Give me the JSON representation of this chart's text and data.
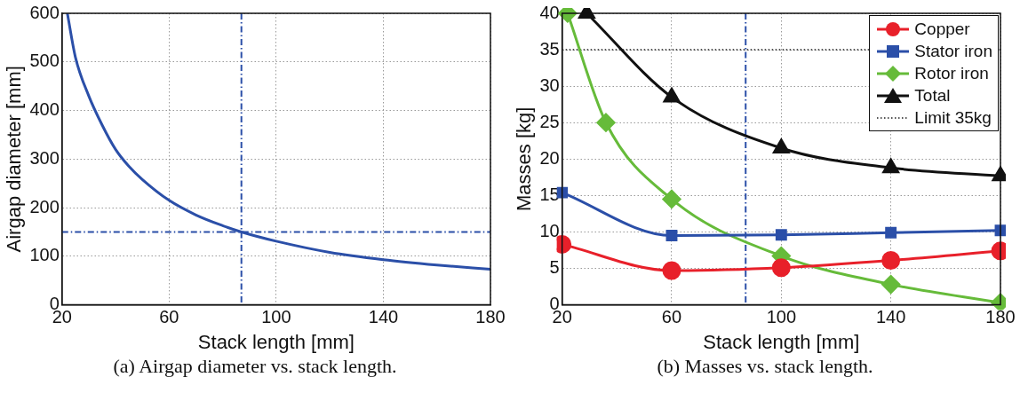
{
  "chart_data": [
    {
      "type": "line",
      "xlabel": "Stack length [mm]",
      "ylabel": "Airgap diameter [mm]",
      "annotations": [
        "(a)  Airgap diameter vs. stack length."
      ],
      "xlim": [
        20,
        180
      ],
      "xticks": [
        20,
        60,
        100,
        140,
        180
      ],
      "ylim": [
        0,
        600
      ],
      "yticks": [
        0,
        100,
        200,
        300,
        400,
        500,
        600
      ],
      "grid": true,
      "legend": false,
      "marker": "none",
      "line_style": "solid",
      "series": [
        {
          "color": "#2b4fa8",
          "x": [
            22,
            25,
            30,
            35,
            40,
            45,
            50,
            60,
            70,
            80,
            87,
            100,
            120,
            140,
            160,
            180
          ],
          "values": [
            600,
            510,
            430,
            370,
            320,
            285,
            258,
            215,
            185,
            163,
            150,
            131,
            108,
            93,
            82,
            73
          ]
        }
      ],
      "ref_lines": [
        {
          "axis": "x",
          "value": 87,
          "color": "#2b4fa8",
          "line_style": "dashed"
        },
        {
          "axis": "y",
          "value": 150,
          "color": "#2b4fa8",
          "line_style": "dashed"
        }
      ]
    },
    {
      "type": "line",
      "xlabel": "Stack length [mm]",
      "ylabel": "Masses [kg]",
      "annotations": [
        "(b)  Masses vs. stack length."
      ],
      "xlim": [
        20,
        180
      ],
      "xticks": [
        20,
        60,
        100,
        140,
        180
      ],
      "ylim": [
        0,
        40
      ],
      "yticks": [
        0,
        5,
        10,
        15,
        20,
        25,
        30,
        35,
        40
      ],
      "grid": true,
      "legend": "top right",
      "line_style": "solid",
      "series": [
        {
          "name": "Copper",
          "color": "#e8202a",
          "marker": "circle",
          "x": [
            20,
            60,
            100,
            140,
            180
          ],
          "values": [
            8.3,
            4.7,
            5.1,
            6.1,
            7.4
          ]
        },
        {
          "name": "Stator iron",
          "color": "#2b4fa8",
          "marker": "square",
          "x": [
            20,
            60,
            100,
            140,
            180
          ],
          "values": [
            15.4,
            9.5,
            9.6,
            9.9,
            10.2
          ]
        },
        {
          "name": "Rotor iron",
          "color": "#66bb3a",
          "marker": "diamond",
          "x": [
            22,
            36,
            60,
            100,
            140,
            180
          ],
          "values": [
            40,
            25,
            14.5,
            6.7,
            2.8,
            0.3
          ]
        },
        {
          "name": "Total",
          "color": "#111111",
          "marker": "triangle",
          "x": [
            29,
            60,
            100,
            140,
            180
          ],
          "values": [
            40,
            28.5,
            21.5,
            18.8,
            17.7
          ]
        }
      ],
      "ref_lines": [
        {
          "axis": "y",
          "value": 35,
          "label": "Limit 35kg",
          "color": "#555555",
          "line_style": "dotted"
        },
        {
          "axis": "x",
          "value": 87,
          "color": "#2b4fa8",
          "line_style": "dashed"
        }
      ]
    }
  ]
}
